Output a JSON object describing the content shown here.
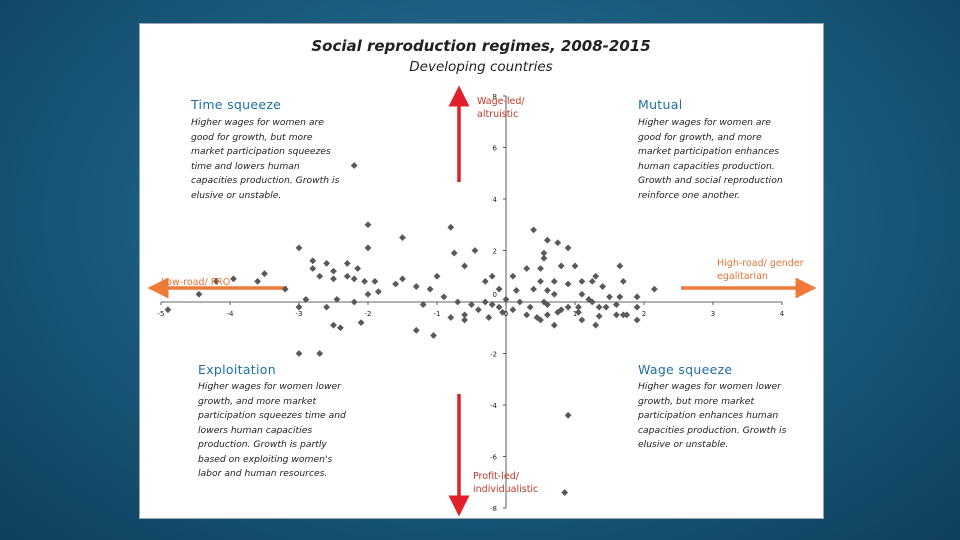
{
  "slide": {
    "quadrants": {
      "top_left": {
        "title": "Time squeeze",
        "text": "Higher wages for women are good for growth, but more market participation squeezes time and lowers human capacities production. Growth is elusive or unstable."
      },
      "top_right": {
        "title": "Mutual",
        "text": "Higher wages for women are good for growth, and more market participation enhances human capacities production. Growth and social reproduction reinforce one another."
      },
      "bottom_left": {
        "title": "Exploitation",
        "text": "Higher wages for women lower growth, and more market participation squeezes time and lowers human capacities production. Growth is partly based on exploiting women's labor and human resources."
      },
      "bottom_right": {
        "title": "Wage squeeze",
        "text": "Higher wages for women lower growth, but more market participation enhances human capacities production. Growth is elusive or unstable."
      }
    },
    "axis_labels": {
      "top": "Wage-led/ altruistic",
      "bottom": "Profit-led/ individualistic",
      "left": "Low-road/ FRO",
      "right": "High-road/ gender egalitarian"
    },
    "colors": {
      "vertical_arrow": "#e0202a",
      "horizontal_arrow": "#ee7a3a",
      "heading": "#1c6fa0",
      "marker": "#595959"
    }
  },
  "chart_data": {
    "type": "scatter",
    "title": "Social reproduction regimes, 2008-2015",
    "subtitle": "Developing countries",
    "xlim": [
      -5,
      4
    ],
    "ylim": [
      -8,
      8
    ],
    "x_ticks": [
      "-5",
      "-4",
      "-3",
      "-2",
      "-1",
      "0",
      "1",
      "2",
      "3",
      "4"
    ],
    "y_ticks": [
      "8",
      "6",
      "4",
      "2",
      "-2",
      "-4",
      "-6",
      "-8"
    ],
    "origin_label": "0",
    "grid": false,
    "marker": "diamond",
    "points": [
      [
        -2.2,
        5.3
      ],
      [
        -2.0,
        3.0
      ],
      [
        -1.5,
        2.5
      ],
      [
        -0.8,
        2.9
      ],
      [
        -0.75,
        1.9
      ],
      [
        -1.0,
        1.0
      ],
      [
        -3.0,
        2.1
      ],
      [
        -2.8,
        1.6
      ],
      [
        -2.6,
        1.5
      ],
      [
        -2.3,
        1.5
      ],
      [
        -2.8,
        1.3
      ],
      [
        -2.5,
        1.2
      ],
      [
        -2.15,
        1.3
      ],
      [
        -2.7,
        1.0
      ],
      [
        -2.5,
        0.9
      ],
      [
        -2.3,
        1.0
      ],
      [
        -2.2,
        0.9
      ],
      [
        -2.05,
        0.8
      ],
      [
        -1.9,
        0.8
      ],
      [
        -1.6,
        0.7
      ],
      [
        -1.5,
        0.9
      ],
      [
        -1.3,
        0.6
      ],
      [
        -1.1,
        0.5
      ],
      [
        -1.85,
        0.4
      ],
      [
        -2.0,
        0.3
      ],
      [
        -2.2,
        0.0
      ],
      [
        -2.45,
        0.1
      ],
      [
        -2.6,
        -0.2
      ],
      [
        -2.9,
        0.1
      ],
      [
        -3.0,
        -0.2
      ],
      [
        -3.2,
        0.5
      ],
      [
        -3.6,
        0.8
      ],
      [
        -3.5,
        1.1
      ],
      [
        -3.95,
        0.9
      ],
      [
        -4.2,
        0.8
      ],
      [
        -4.45,
        0.3
      ],
      [
        -4.9,
        -0.3
      ],
      [
        -2.5,
        -0.9
      ],
      [
        -2.4,
        -1.0
      ],
      [
        -2.1,
        -0.8
      ],
      [
        -1.3,
        -1.1
      ],
      [
        -0.6,
        -0.5
      ],
      [
        -0.7,
        0.0
      ],
      [
        -2.0,
        2.1
      ],
      [
        -2.7,
        -2.0
      ],
      [
        -3.0,
        -2.0
      ],
      [
        -0.9,
        0.2
      ],
      [
        -0.6,
        1.4
      ],
      [
        -0.45,
        2.0
      ],
      [
        -0.2,
        1.0
      ],
      [
        -0.5,
        -0.1
      ],
      [
        -0.4,
        -0.3
      ],
      [
        -0.3,
        0.0
      ],
      [
        -0.2,
        -0.1
      ],
      [
        -0.1,
        -0.2
      ],
      [
        0.0,
        0.1
      ],
      [
        0.1,
        -0.3
      ],
      [
        0.3,
        -0.5
      ],
      [
        0.45,
        -0.6
      ],
      [
        0.6,
        -0.5
      ],
      [
        0.75,
        -0.4
      ],
      [
        0.9,
        -0.2
      ],
      [
        1.05,
        -0.4
      ],
      [
        1.1,
        0.3
      ],
      [
        1.2,
        0.1
      ],
      [
        1.35,
        -0.2
      ],
      [
        1.5,
        0.2
      ],
      [
        1.6,
        -0.5
      ],
      [
        1.75,
        -0.5
      ],
      [
        1.6,
        -0.1
      ],
      [
        1.1,
        -0.7
      ],
      [
        1.3,
        -0.9
      ],
      [
        0.7,
        -0.9
      ],
      [
        0.5,
        -0.7
      ],
      [
        0.4,
        0.5
      ],
      [
        0.9,
        0.7
      ],
      [
        -0.6,
        -0.7
      ],
      [
        -0.3,
        0.8
      ],
      [
        -0.1,
        0.5
      ],
      [
        0.1,
        1.0
      ],
      [
        0.3,
        1.3
      ],
      [
        0.5,
        1.3
      ],
      [
        0.55,
        1.9
      ],
      [
        0.75,
        2.3
      ],
      [
        0.9,
        2.1
      ],
      [
        1.0,
        1.4
      ],
      [
        1.1,
        0.8
      ],
      [
        1.3,
        1.0
      ],
      [
        1.4,
        0.6
      ],
      [
        1.7,
        0.8
      ],
      [
        1.65,
        1.4
      ],
      [
        0.7,
        0.3
      ],
      [
        0.55,
        0.0
      ],
      [
        0.35,
        -0.2
      ],
      [
        0.2,
        0.0
      ],
      [
        -0.05,
        -0.4
      ],
      [
        -0.25,
        -0.6
      ],
      [
        0.8,
        -0.3
      ],
      [
        1.45,
        -0.2
      ],
      [
        1.25,
        0.0
      ],
      [
        0.6,
        -0.1
      ],
      [
        1.9,
        0.2
      ],
      [
        1.65,
        0.2
      ],
      [
        1.7,
        -0.5
      ],
      [
        2.15,
        0.5
      ],
      [
        1.9,
        -0.2
      ],
      [
        0.8,
        1.4
      ],
      [
        0.55,
        1.7
      ],
      [
        0.4,
        2.8
      ],
      [
        0.5,
        0.8
      ],
      [
        0.7,
        0.8
      ],
      [
        1.05,
        -0.2
      ],
      [
        1.35,
        -0.55
      ],
      [
        1.25,
        0.8
      ],
      [
        -1.2,
        -0.1
      ],
      [
        0.6,
        2.4
      ],
      [
        1.9,
        -0.7
      ],
      [
        0.85,
        -7.4
      ],
      [
        0.9,
        -4.4
      ],
      [
        -1.05,
        -1.3
      ],
      [
        -0.8,
        -0.6
      ],
      [
        0.15,
        0.45
      ],
      [
        0.6,
        0.45
      ]
    ]
  }
}
